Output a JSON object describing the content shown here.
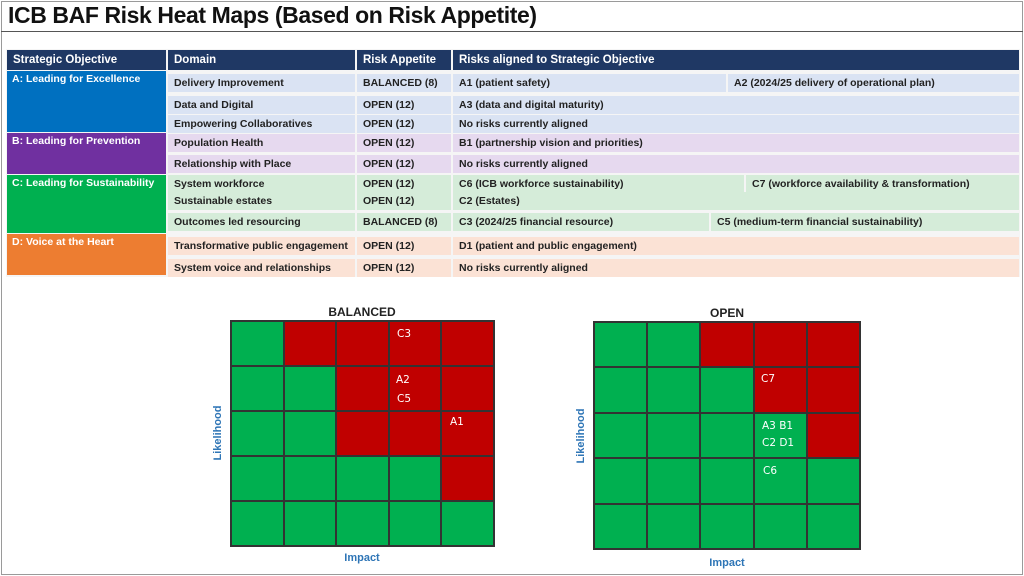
{
  "title": "ICB BAF Risk Heat Maps (Based on Risk Appetite)",
  "colors": {
    "header": "#1f3864",
    "a": "#0070c0",
    "b": "#7030a0",
    "c": "#00b050",
    "d": "#ed7d31",
    "red": "#c00000",
    "green": "#00b050"
  },
  "headers": {
    "objective": "Strategic Objective",
    "domain": "Domain",
    "appetite": "Risk Appetite",
    "risks": "Risks aligned to Strategic Objective"
  },
  "objectives": {
    "a": "A: Leading for Excellence",
    "b": "B: Leading for Prevention",
    "c": "C: Leading for Sustainability",
    "d": "D: Voice at the Heart"
  },
  "rows": [
    {
      "domain": "Delivery Improvement",
      "appetite": "BALANCED (8)",
      "risk1": "A1 (patient safety)",
      "risk2": "A2 (2024/25 delivery of operational plan)"
    },
    {
      "domain": "Data and Digital",
      "appetite": "OPEN (12)",
      "risk1": "A3 (data and digital maturity)"
    },
    {
      "domain": "Empowering Collaboratives",
      "appetite": "OPEN (12)",
      "risk1": "No risks currently aligned"
    },
    {
      "domain": "Population Health",
      "appetite": "OPEN (12)",
      "risk1": "B1 (partnership vision and priorities)"
    },
    {
      "domain": "Relationship with Place",
      "appetite": "OPEN (12)",
      "risk1": "No risks currently aligned"
    },
    {
      "domain": "System workforce",
      "appetite": "OPEN (12)",
      "risk1": "C6 (ICB workforce sustainability)",
      "risk2": "C7 (workforce availability & transformation)"
    },
    {
      "domain": "Sustainable estates",
      "appetite": "OPEN (12)",
      "risk1": "C2 (Estates)"
    },
    {
      "domain": "Outcomes led resourcing",
      "appetite": "BALANCED (8)",
      "risk1": "C3 (2024/25 financial resource)",
      "risk2": "C5 (medium-term financial sustainability)"
    },
    {
      "domain": "Transformative public engagement",
      "appetite": "OPEN (12)",
      "risk1": "D1 (patient and public engagement)"
    },
    {
      "domain": "System voice and relationships",
      "appetite": "OPEN (12)",
      "risk1": "No risks currently aligned"
    }
  ],
  "heatmaps": {
    "balanced": {
      "title": "BALANCED",
      "xlabel": "Impact",
      "ylabel": "Likelihood",
      "grid": [
        "GRRRR",
        "GGRRR",
        "GGRRR",
        "GGGGR",
        "GGGGG"
      ],
      "labels": [
        "C3",
        "A2",
        "C5",
        "A1"
      ]
    },
    "open": {
      "title": "OPEN",
      "xlabel": "Impact",
      "ylabel": "Likelihood",
      "grid": [
        "GGRRR",
        "GGGRR",
        "GGGGR",
        "GGGGG",
        "GGGGG"
      ],
      "labels": [
        "C7",
        "A3   B1",
        "C2   D1",
        "C6"
      ]
    }
  }
}
